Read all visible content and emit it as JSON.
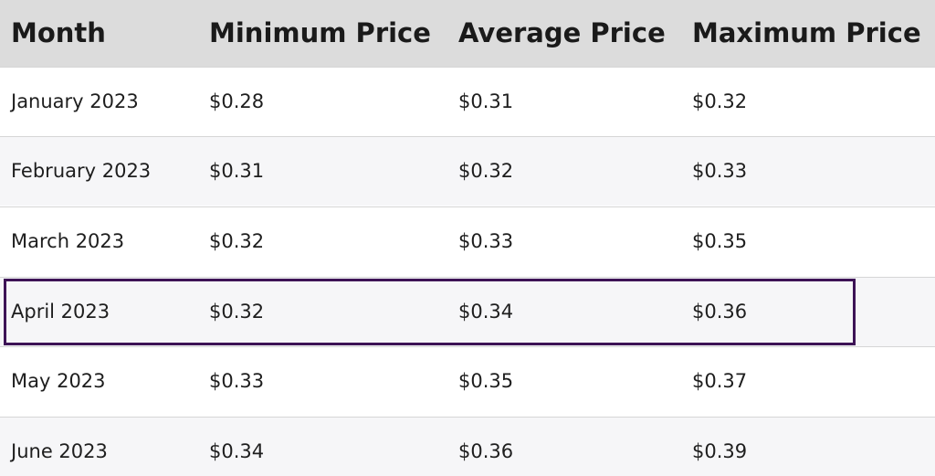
{
  "table": {
    "headers": [
      "Month",
      "Minimum Price",
      "Average Price",
      "Maximum Price"
    ],
    "rows": [
      [
        "January 2023",
        "$0.28",
        "$0.31",
        "$0.32"
      ],
      [
        "February 2023",
        "$0.31",
        "$0.32",
        "$0.33"
      ],
      [
        "March 2023",
        "$0.32",
        "$0.33",
        "$0.35"
      ],
      [
        "April 2023",
        "$0.32",
        "$0.34",
        "$0.36"
      ],
      [
        "May 2023",
        "$0.33",
        "$0.35",
        "$0.37"
      ],
      [
        "June 2023",
        "$0.34",
        "$0.36",
        "$0.39"
      ]
    ],
    "highlighted_row_index": 3,
    "colors": {
      "header_bg": "#dcdcdc",
      "highlight_border": "#3d1356",
      "stripe_bg": "#f6f6f8"
    }
  }
}
